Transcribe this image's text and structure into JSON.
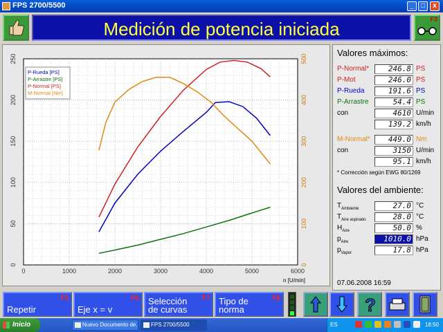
{
  "window": {
    "title": "FPS 2700/5500",
    "min": "_",
    "max": "□",
    "close": "x"
  },
  "header": {
    "title": "Medición de potencia iniciada",
    "right_key": "F3"
  },
  "chart_data": {
    "type": "line",
    "x_label": "n [U/min]",
    "x_ticks": [
      0,
      1000,
      2000,
      3000,
      4000,
      5000,
      6000
    ],
    "xlim": [
      0,
      6000
    ],
    "y_left_ticks": [
      0,
      50,
      100,
      150,
      200,
      250
    ],
    "ylim_left": [
      0,
      250
    ],
    "y_right_ticks": [
      0,
      100,
      200,
      300,
      400,
      500
    ],
    "ylim_right": [
      0,
      500
    ],
    "grid": true,
    "legend_position": "top-left",
    "series": [
      {
        "name": "P-Rueda [PS]",
        "color": "#0000c0",
        "axis": "left",
        "x": [
          1650,
          2000,
          2500,
          3000,
          3500,
          4000,
          4200,
          4500,
          4800,
          5100,
          5400
        ],
        "y": [
          40,
          75,
          110,
          138,
          162,
          185,
          197,
          198,
          192,
          178,
          157
        ]
      },
      {
        "name": "P-Arrastre [PS]",
        "color": "#107010",
        "axis": "left",
        "x": [
          1650,
          2000,
          2500,
          3000,
          3500,
          4000,
          4500,
          5000,
          5400
        ],
        "y": [
          14,
          18,
          24,
          31,
          38,
          46,
          54,
          63,
          70
        ]
      },
      {
        "name": "P-Normal [PS]",
        "color": "#d02020",
        "axis": "left",
        "x": [
          1650,
          2000,
          2500,
          3000,
          3500,
          4000,
          4300,
          4600,
          4900,
          5200,
          5400
        ],
        "y": [
          58,
          98,
          143,
          180,
          212,
          237,
          246,
          248,
          246,
          238,
          228
        ]
      },
      {
        "name": "M-Normal [Nm]",
        "color": "#e08a10",
        "axis": "right",
        "x": [
          1650,
          1800,
          2000,
          2300,
          2600,
          2900,
          3200,
          3500,
          3800,
          4100,
          4400,
          4700,
          5000,
          5400
        ],
        "y": [
          278,
          345,
          395,
          425,
          445,
          455,
          455,
          440,
          420,
          395,
          360,
          330,
          300,
          245
        ]
      }
    ]
  },
  "max_values": {
    "title": "Valores máximos:",
    "p_normal": {
      "label": "P-Normal*",
      "value": "246.8",
      "unit": "PS"
    },
    "p_mot": {
      "label": "P-Mot",
      "value": "246.0",
      "unit": "PS"
    },
    "p_rueda": {
      "label": "P-Rueda",
      "value": "191.6",
      "unit": "PS"
    },
    "p_arrastre": {
      "label": "P-Arrastre",
      "value": "54.4",
      "unit": "PS"
    },
    "con1": {
      "label": "con",
      "value": "4610",
      "unit": "U/min"
    },
    "speed1": {
      "value": "139.2",
      "unit": "km/h"
    },
    "m_normal": {
      "label": "M-Normal*",
      "value": "449.0",
      "unit": "Nm"
    },
    "con2": {
      "label": "con",
      "value": "3150",
      "unit": "U/min"
    },
    "speed2": {
      "value": "95.1",
      "unit": "km/h"
    },
    "note": "* Corrección según EWG 80/1269"
  },
  "ambient": {
    "title": "Valores del ambiente:",
    "t_amb": {
      "main": "T",
      "sub": "Ambiente",
      "value": "27.0",
      "unit": "°C"
    },
    "t_air": {
      "main": "T",
      "sub": "Aire aspirado",
      "value": "28.0",
      "unit": "°C"
    },
    "h_air": {
      "main": "H",
      "sub": "Aire",
      "value": "50.0",
      "unit": "%"
    },
    "p_air": {
      "main": "p",
      "sub": "Aire",
      "value": "1010.0",
      "unit": "hPa"
    },
    "p_vap": {
      "main": "p",
      "sub": "Vapor",
      "value": "17.8",
      "unit": "hPa"
    },
    "datetime": "07.06.2008  16:59"
  },
  "fkeys": {
    "f5": {
      "label": "Repetir",
      "key": "F5"
    },
    "f6": {
      "label": "Eje x = v",
      "key": "F6"
    },
    "f7": {
      "label": "Selección de curvas",
      "key": "F7"
    },
    "f8": {
      "label": "Tipo de norma",
      "key": "F8"
    }
  },
  "taskbar": {
    "start": "Inicio",
    "task1": "Nuevo Documento de...",
    "task2": "FPS 2700/5500",
    "lang": "ES",
    "clock": "18:50"
  }
}
